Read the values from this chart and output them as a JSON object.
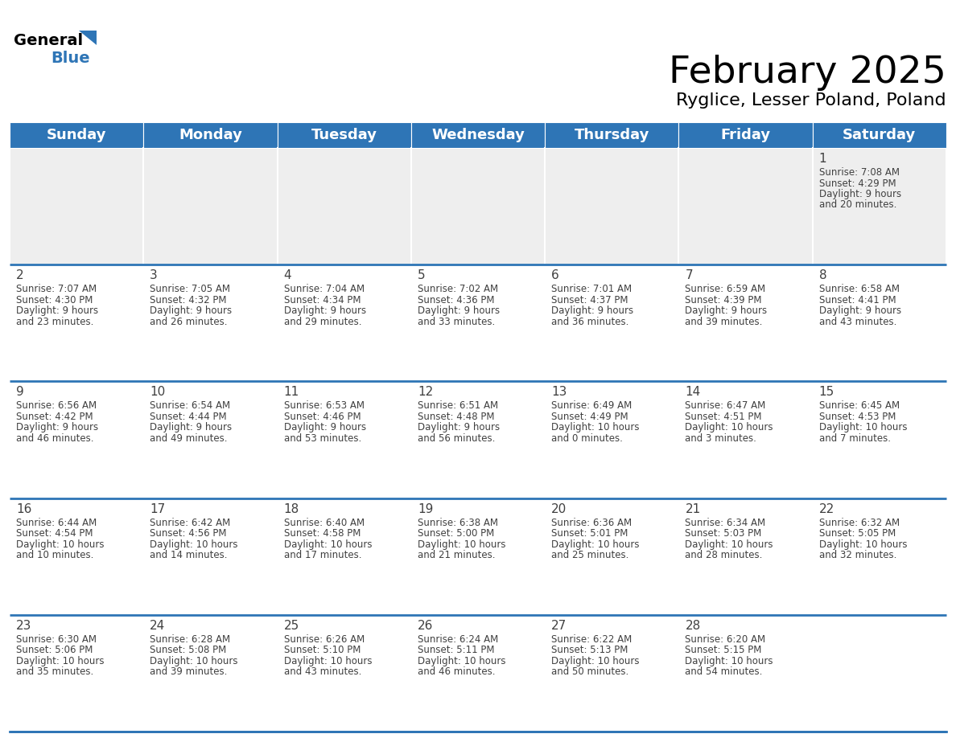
{
  "title": "February 2025",
  "subtitle": "Ryglice, Lesser Poland, Poland",
  "header_color": "#2e75b6",
  "header_text_color": "#ffffff",
  "cell_bg_white": "#ffffff",
  "cell_bg_gray": "#eeeeee",
  "separator_color": "#2e75b6",
  "text_color": "#404040",
  "day_headers": [
    "Sunday",
    "Monday",
    "Tuesday",
    "Wednesday",
    "Thursday",
    "Friday",
    "Saturday"
  ],
  "title_fontsize": 34,
  "subtitle_fontsize": 16,
  "header_fontsize": 13,
  "day_num_fontsize": 11,
  "info_fontsize": 8.5,
  "days": [
    {
      "day": 1,
      "col": 6,
      "row": 0,
      "sunrise": "7:08 AM",
      "sunset": "4:29 PM",
      "daylight": "9 hours and 20 minutes"
    },
    {
      "day": 2,
      "col": 0,
      "row": 1,
      "sunrise": "7:07 AM",
      "sunset": "4:30 PM",
      "daylight": "9 hours and 23 minutes"
    },
    {
      "day": 3,
      "col": 1,
      "row": 1,
      "sunrise": "7:05 AM",
      "sunset": "4:32 PM",
      "daylight": "9 hours and 26 minutes"
    },
    {
      "day": 4,
      "col": 2,
      "row": 1,
      "sunrise": "7:04 AM",
      "sunset": "4:34 PM",
      "daylight": "9 hours and 29 minutes"
    },
    {
      "day": 5,
      "col": 3,
      "row": 1,
      "sunrise": "7:02 AM",
      "sunset": "4:36 PM",
      "daylight": "9 hours and 33 minutes"
    },
    {
      "day": 6,
      "col": 4,
      "row": 1,
      "sunrise": "7:01 AM",
      "sunset": "4:37 PM",
      "daylight": "9 hours and 36 minutes"
    },
    {
      "day": 7,
      "col": 5,
      "row": 1,
      "sunrise": "6:59 AM",
      "sunset": "4:39 PM",
      "daylight": "9 hours and 39 minutes"
    },
    {
      "day": 8,
      "col": 6,
      "row": 1,
      "sunrise": "6:58 AM",
      "sunset": "4:41 PM",
      "daylight": "9 hours and 43 minutes"
    },
    {
      "day": 9,
      "col": 0,
      "row": 2,
      "sunrise": "6:56 AM",
      "sunset": "4:42 PM",
      "daylight": "9 hours and 46 minutes"
    },
    {
      "day": 10,
      "col": 1,
      "row": 2,
      "sunrise": "6:54 AM",
      "sunset": "4:44 PM",
      "daylight": "9 hours and 49 minutes"
    },
    {
      "day": 11,
      "col": 2,
      "row": 2,
      "sunrise": "6:53 AM",
      "sunset": "4:46 PM",
      "daylight": "9 hours and 53 minutes"
    },
    {
      "day": 12,
      "col": 3,
      "row": 2,
      "sunrise": "6:51 AM",
      "sunset": "4:48 PM",
      "daylight": "9 hours and 56 minutes"
    },
    {
      "day": 13,
      "col": 4,
      "row": 2,
      "sunrise": "6:49 AM",
      "sunset": "4:49 PM",
      "daylight": "10 hours and 0 minutes"
    },
    {
      "day": 14,
      "col": 5,
      "row": 2,
      "sunrise": "6:47 AM",
      "sunset": "4:51 PM",
      "daylight": "10 hours and 3 minutes"
    },
    {
      "day": 15,
      "col": 6,
      "row": 2,
      "sunrise": "6:45 AM",
      "sunset": "4:53 PM",
      "daylight": "10 hours and 7 minutes"
    },
    {
      "day": 16,
      "col": 0,
      "row": 3,
      "sunrise": "6:44 AM",
      "sunset": "4:54 PM",
      "daylight": "10 hours and 10 minutes"
    },
    {
      "day": 17,
      "col": 1,
      "row": 3,
      "sunrise": "6:42 AM",
      "sunset": "4:56 PM",
      "daylight": "10 hours and 14 minutes"
    },
    {
      "day": 18,
      "col": 2,
      "row": 3,
      "sunrise": "6:40 AM",
      "sunset": "4:58 PM",
      "daylight": "10 hours and 17 minutes"
    },
    {
      "day": 19,
      "col": 3,
      "row": 3,
      "sunrise": "6:38 AM",
      "sunset": "5:00 PM",
      "daylight": "10 hours and 21 minutes"
    },
    {
      "day": 20,
      "col": 4,
      "row": 3,
      "sunrise": "6:36 AM",
      "sunset": "5:01 PM",
      "daylight": "10 hours and 25 minutes"
    },
    {
      "day": 21,
      "col": 5,
      "row": 3,
      "sunrise": "6:34 AM",
      "sunset": "5:03 PM",
      "daylight": "10 hours and 28 minutes"
    },
    {
      "day": 22,
      "col": 6,
      "row": 3,
      "sunrise": "6:32 AM",
      "sunset": "5:05 PM",
      "daylight": "10 hours and 32 minutes"
    },
    {
      "day": 23,
      "col": 0,
      "row": 4,
      "sunrise": "6:30 AM",
      "sunset": "5:06 PM",
      "daylight": "10 hours and 35 minutes"
    },
    {
      "day": 24,
      "col": 1,
      "row": 4,
      "sunrise": "6:28 AM",
      "sunset": "5:08 PM",
      "daylight": "10 hours and 39 minutes"
    },
    {
      "day": 25,
      "col": 2,
      "row": 4,
      "sunrise": "6:26 AM",
      "sunset": "5:10 PM",
      "daylight": "10 hours and 43 minutes"
    },
    {
      "day": 26,
      "col": 3,
      "row": 4,
      "sunrise": "6:24 AM",
      "sunset": "5:11 PM",
      "daylight": "10 hours and 46 minutes"
    },
    {
      "day": 27,
      "col": 4,
      "row": 4,
      "sunrise": "6:22 AM",
      "sunset": "5:13 PM",
      "daylight": "10 hours and 50 minutes"
    },
    {
      "day": 28,
      "col": 5,
      "row": 4,
      "sunrise": "6:20 AM",
      "sunset": "5:15 PM",
      "daylight": "10 hours and 54 minutes"
    }
  ]
}
